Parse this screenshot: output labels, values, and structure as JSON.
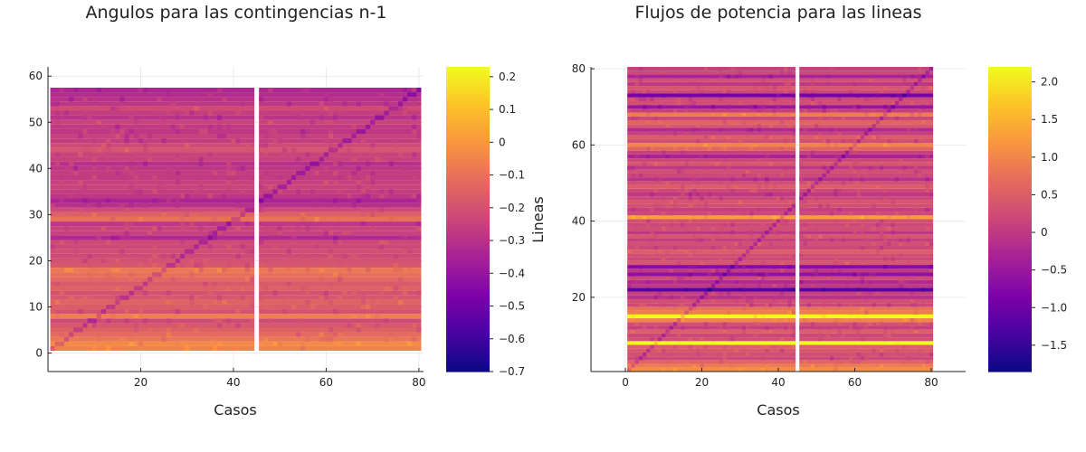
{
  "chart_data": [
    {
      "type": "heatmap",
      "title": "Angulos para las contingencias n-1",
      "xlabel": "Casos",
      "ylabel": "",
      "xlim": [
        0,
        81
      ],
      "ylim": [
        -4,
        62
      ],
      "xticks": [
        20,
        40,
        60,
        80
      ],
      "yticks": [
        0,
        10,
        20,
        30,
        40,
        50,
        60
      ],
      "x_range": [
        1,
        80
      ],
      "y_range": [
        1,
        57
      ],
      "missing_column": 45,
      "colorbar": {
        "range": [
          -0.7,
          0.23
        ],
        "ticks": [
          -0.7,
          -0.6,
          -0.5,
          -0.4,
          -0.3,
          -0.2,
          -0.1,
          0,
          0.1,
          0.2
        ],
        "tick_labels": [
          "−0.7",
          "−0.6",
          "−0.5",
          "−0.4",
          "−0.3",
          "−0.2",
          "−0.1",
          "0",
          "0.1",
          "0.2"
        ],
        "colormap": "plasma"
      },
      "row_values": [
        -0.05,
        -0.03,
        -0.08,
        -0.12,
        -0.15,
        -0.18,
        -0.22,
        -0.06,
        -0.2,
        -0.16,
        -0.14,
        -0.18,
        -0.2,
        -0.15,
        -0.17,
        -0.13,
        -0.1,
        -0.08,
        -0.18,
        -0.2,
        -0.22,
        -0.21,
        -0.23,
        -0.22,
        -0.32,
        -0.25,
        -0.24,
        -0.28,
        -0.1,
        -0.15,
        -0.22,
        -0.3,
        -0.34,
        -0.28,
        -0.26,
        -0.24,
        -0.25,
        -0.27,
        -0.26,
        -0.28,
        -0.3,
        -0.25,
        -0.24,
        -0.19,
        -0.22,
        -0.26,
        -0.25,
        -0.28,
        -0.27,
        -0.24,
        -0.29,
        -0.26,
        -0.22,
        -0.28,
        -0.3,
        -0.31,
        -0.33
      ]
    },
    {
      "type": "heatmap",
      "title": "Flujos de potencia para las lineas",
      "xlabel": "Casos",
      "ylabel": "Lineas",
      "xlim": [
        -9,
        89
      ],
      "ylim": [
        0.5,
        80.5
      ],
      "xticks": [
        0,
        20,
        40,
        60,
        80
      ],
      "yticks": [
        20,
        40,
        60,
        80
      ],
      "x_range": [
        1,
        80
      ],
      "y_range": [
        1,
        80
      ],
      "missing_column": 45,
      "colorbar": {
        "range": [
          -1.85,
          2.2
        ],
        "ticks": [
          -1.5,
          -1.0,
          -0.5,
          0,
          0.5,
          1.0,
          1.5,
          2.0
        ],
        "tick_labels": [
          "−1.5",
          "−1.0",
          "−0.5",
          "0",
          "0.5",
          "1.0",
          "1.5",
          "2.0"
        ],
        "colormap": "plasma"
      },
      "row_values": [
        1.1,
        0.9,
        0.6,
        0.2,
        0.3,
        0.4,
        0.5,
        2.2,
        0.3,
        0.2,
        0.5,
        0.1,
        0.3,
        1.0,
        2.2,
        0.9,
        0.8,
        0.2,
        0.3,
        -0.1,
        0.1,
        -1.2,
        0.0,
        -0.2,
        0.2,
        -0.6,
        0.0,
        -0.7,
        0.4,
        0.2,
        0.3,
        0.5,
        0.2,
        0.3,
        0.1,
        0.4,
        0.0,
        0.3,
        0.2,
        0.3,
        1.3,
        0.2,
        0.1,
        0.3,
        0.4,
        0.2,
        0.0,
        0.2,
        0.5,
        0.3,
        -0.1,
        0.2,
        0.3,
        0.0,
        0.4,
        0.2,
        -0.3,
        0.1,
        0.6,
        1.0,
        0.3,
        0.5,
        0.1,
        -0.2,
        0.4,
        0.6,
        0.2,
        0.9,
        0.1,
        -0.5,
        0.3,
        0.2,
        -0.9,
        0.2,
        0.4,
        0.0,
        0.3,
        -0.3,
        0.2,
        0.1
      ]
    }
  ]
}
